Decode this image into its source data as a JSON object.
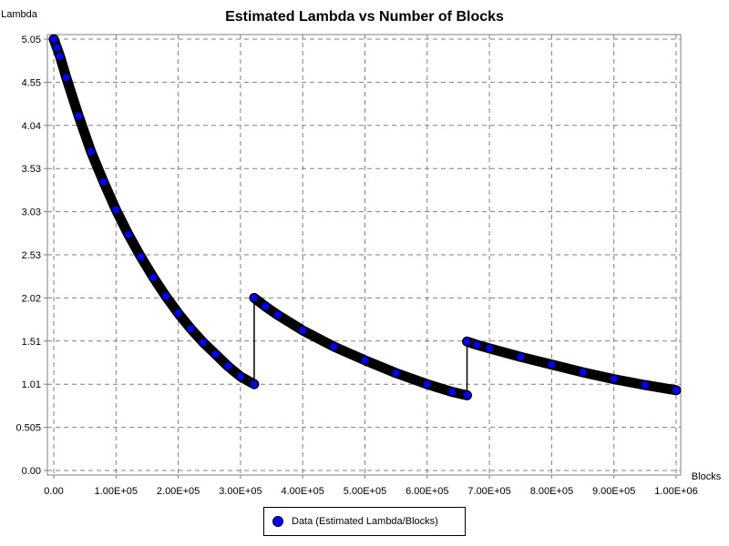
{
  "chart_data": {
    "type": "scatter",
    "title": "Estimated Lambda vs Number of Blocks",
    "xlabel": "Blocks",
    "ylabel": "Lambda",
    "xlim": [
      0,
      1000000
    ],
    "ylim": [
      0,
      5.05
    ],
    "grid": true,
    "legend_position": "bottom",
    "x_ticks": [
      "0.00",
      "1.00E+05",
      "2.00E+05",
      "3.00E+05",
      "4.00E+05",
      "5.00E+05",
      "6.00E+05",
      "7.00E+05",
      "8.00E+05",
      "9.00E+05",
      "1.00E+06"
    ],
    "y_ticks": [
      "0.00",
      "0.505",
      "1.01",
      "1.51",
      "2.02",
      "2.53",
      "3.03",
      "3.53",
      "4.04",
      "4.55",
      "5.05"
    ],
    "series": [
      {
        "name": "Data (Estimated Lambda/Blocks)",
        "color": "#0000ff",
        "x": [
          0,
          5000,
          10000,
          20000,
          40000,
          60000,
          80000,
          100000,
          120000,
          140000,
          160000,
          180000,
          200000,
          220000,
          240000,
          260000,
          280000,
          300000,
          322000,
          322000,
          340000,
          360000,
          400000,
          450000,
          500000,
          550000,
          600000,
          640000,
          664000,
          664000,
          680000,
          700000,
          750000,
          800000,
          850000,
          900000,
          950000,
          1000000
        ],
        "y": [
          5.05,
          4.95,
          4.85,
          4.6,
          4.15,
          3.73,
          3.38,
          3.05,
          2.76,
          2.5,
          2.26,
          2.04,
          1.84,
          1.66,
          1.5,
          1.36,
          1.22,
          1.1,
          1.01,
          2.02,
          1.92,
          1.82,
          1.64,
          1.45,
          1.29,
          1.14,
          1.01,
          0.92,
          0.88,
          1.51,
          1.47,
          1.43,
          1.33,
          1.24,
          1.15,
          1.07,
          1.0,
          0.94
        ]
      }
    ]
  },
  "legend": {
    "label": "Data (Estimated Lambda/Blocks)"
  }
}
